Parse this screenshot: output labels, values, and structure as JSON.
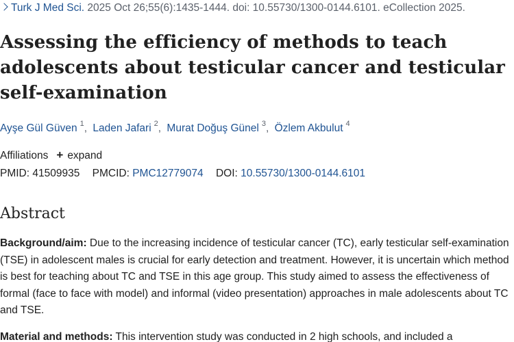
{
  "citation": {
    "journal": "Turk J Med Sci.",
    "details": " 2025 Oct 26;55(6):1435-1444. doi: 10.55730/1300-0144.6101. eCollection 2025."
  },
  "article": {
    "title": "Assessing the efficiency of methods to teach adolescents about testicular cancer and testicular self-examination"
  },
  "authors": [
    {
      "name": "Ayşe Gül Güven",
      "sup": "1"
    },
    {
      "name": "Laden Jafari",
      "sup": "2"
    },
    {
      "name": "Murat Doğuş Günel",
      "sup": "3"
    },
    {
      "name": "Özlem Akbulut",
      "sup": "4"
    }
  ],
  "affiliations": {
    "label": "Affiliations",
    "toggle_icon": "plus-icon",
    "toggle_label": "expand"
  },
  "identifiers": {
    "pmid_label": "PMID:",
    "pmid": "41509935",
    "pmcid_label": "PMCID:",
    "pmcid": "PMC12779074",
    "doi_label": "DOI:",
    "doi": "10.55730/1300-0144.6101"
  },
  "abstract": {
    "heading": "Abstract",
    "sections": [
      {
        "label": "Background/aim:",
        "text": " Due to the increasing incidence of testicular cancer (TC), early testicular self-examination (TSE) in adolescent males is crucial for early detection and treatment. However, it is uncertain which method is best for teaching about TC and TSE in this age group. This study aimed to assess the effectiveness of formal (face to face with model) and informal (video presentation) approaches in male adolescents about TC and TSE."
      },
      {
        "label": "Material and methods:",
        "text": " This intervention study was conducted in 2 high schools, and included a"
      }
    ]
  },
  "colors": {
    "link": "#205493",
    "text": "#212121",
    "muted": "#5b616b"
  }
}
